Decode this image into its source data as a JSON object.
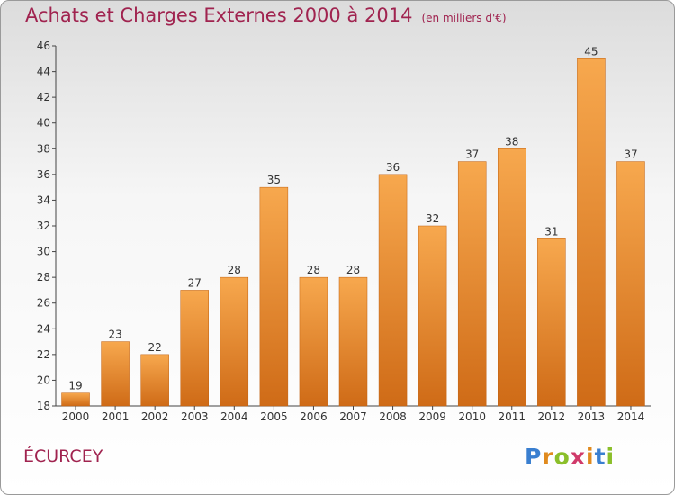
{
  "title": "Achats et Charges Externes 2000 à 2014",
  "unit_note": "(en milliers d'€)",
  "location": "ÉCURCEY",
  "logo": {
    "letters": [
      "P",
      "r",
      "o",
      "x",
      "i",
      "t",
      "i"
    ],
    "colors": [
      "#3a7fd0",
      "#e08a1e",
      "#8bbf2a",
      "#d03a6a",
      "#e08a1e",
      "#3a7fd0",
      "#8bbf2a"
    ]
  },
  "colors": {
    "bar_top": "#f7a84e",
    "bar_bottom": "#cf6b17",
    "axis": "#444444",
    "grid": "#cccccc"
  },
  "chart_data": {
    "type": "bar",
    "categories": [
      "2000",
      "2001",
      "2002",
      "2003",
      "2004",
      "2005",
      "2006",
      "2007",
      "2008",
      "2009",
      "2010",
      "2011",
      "2012",
      "2013",
      "2014"
    ],
    "values": [
      19,
      23,
      22,
      27,
      28,
      35,
      28,
      28,
      36,
      32,
      37,
      38,
      31,
      45,
      37
    ],
    "ylim": [
      18,
      46
    ],
    "yticks": [
      18,
      20,
      22,
      24,
      26,
      28,
      30,
      32,
      34,
      36,
      38,
      40,
      42,
      44,
      46
    ],
    "grid": false
  }
}
